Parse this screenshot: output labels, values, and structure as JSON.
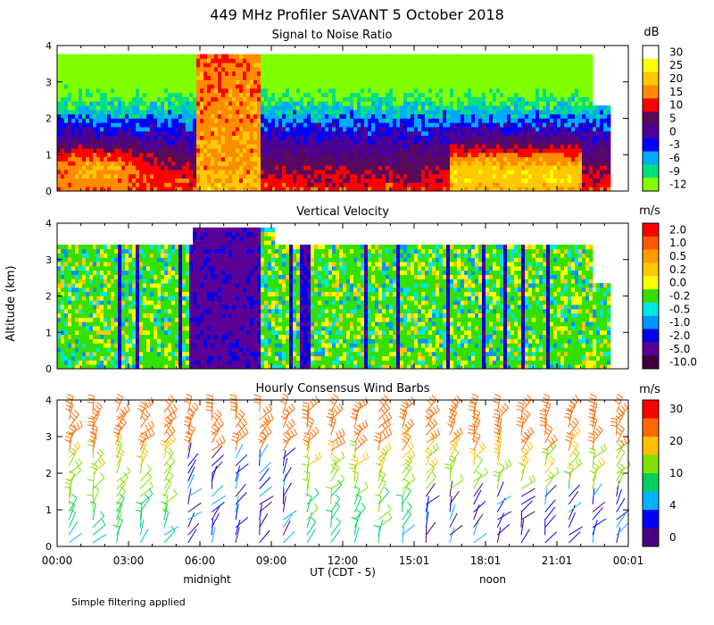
{
  "title": "449 MHz Profiler SAVANT  5 October 2018",
  "ylabel": "Altitude (km)",
  "xlabel": "UT  (CDT - 5)",
  "time_ticks": [
    "00:00",
    "03:00",
    "06:00",
    "09:00",
    "12:00",
    "15:01",
    "18:01",
    "21:01",
    "00:01"
  ],
  "time_ticks_hours": [
    0,
    3,
    6,
    9,
    12,
    15,
    18,
    21,
    24
  ],
  "sub_labels": [
    {
      "text": "midnight",
      "hour": 6.3
    },
    {
      "text": "noon",
      "hour": 18.3
    }
  ],
  "footnote": "Simple filtering applied",
  "colors": {
    "background": "#ffffff",
    "axis": "#000000",
    "missing": "#ffffff"
  },
  "chart_data": [
    {
      "id": "snr",
      "type": "heatmap",
      "title": "Signal to Noise Ratio",
      "unit": "dB",
      "x_range_hours": [
        0,
        24
      ],
      "ylim": [
        0,
        4
      ],
      "y_ticks": [
        0,
        1,
        2,
        3,
        4
      ],
      "colorbar": {
        "labels": [
          "30",
          "25",
          "20",
          "15",
          "10",
          "5",
          "0",
          "-3",
          "-6",
          "-9",
          "-12"
        ],
        "colors": [
          "#ffffff",
          "#ffff00",
          "#ffc800",
          "#ff8c00",
          "#ff0000",
          "#5a0a5a",
          "#4b0096",
          "#0000ff",
          "#00aaff",
          "#00e080",
          "#80ff00"
        ]
      }
    },
    {
      "id": "vv",
      "type": "heatmap",
      "title": "Vertical Velocity",
      "unit": "m/s",
      "x_range_hours": [
        0,
        24
      ],
      "ylim": [
        0,
        4
      ],
      "y_ticks": [
        0,
        1,
        2,
        3,
        4
      ],
      "colorbar": {
        "labels": [
          "2.0",
          "1.0",
          "0.5",
          "0.2",
          "0.0",
          "-0.2",
          "-0.5",
          "-1.0",
          "-2.0",
          "-5.0",
          "-10.0"
        ],
        "colors": [
          "#ff0000",
          "#ff5a00",
          "#ff9b00",
          "#ffc800",
          "#ffff00",
          "#33e000",
          "#00e6e6",
          "#0096ff",
          "#0000e6",
          "#5a0096",
          "#3c003c"
        ]
      }
    },
    {
      "id": "wind",
      "type": "wind_barbs",
      "title": "Hourly Consensus Wind Barbs",
      "unit": "m/s",
      "x_range_hours": [
        0,
        24
      ],
      "ylim": [
        0,
        4
      ],
      "y_ticks": [
        0,
        1,
        2,
        3,
        4
      ],
      "colorbar": {
        "labels": [
          "30",
          "20",
          "10",
          "4",
          "0"
        ],
        "colors": [
          "#ff0000",
          "#ff6a00",
          "#ffc000",
          "#80e000",
          "#00d060",
          "#00b4ff",
          "#0000ff",
          "#4b0082"
        ]
      }
    }
  ]
}
